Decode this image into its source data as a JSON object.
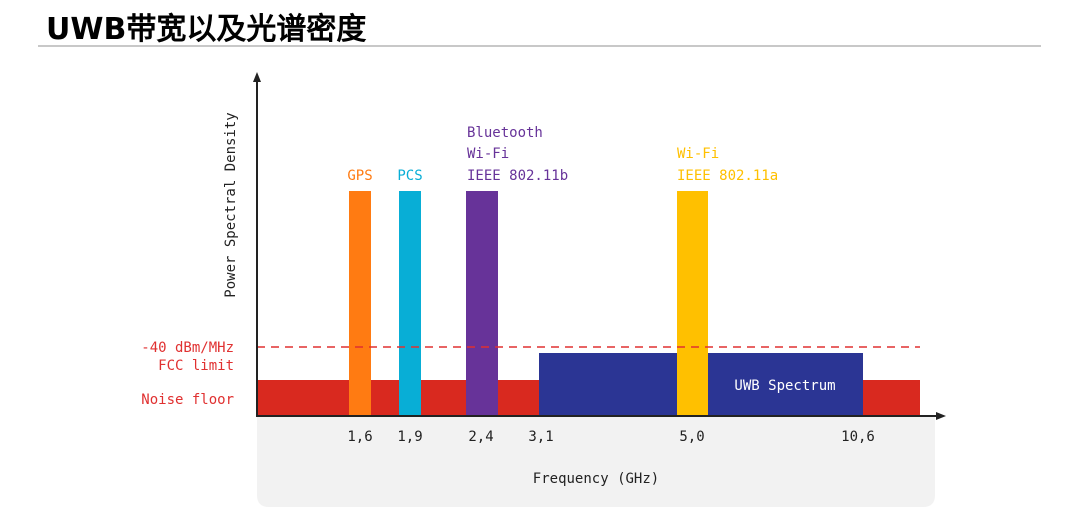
{
  "title": "UWB带宽以及光谱密度",
  "chart_data": {
    "type": "bar",
    "ylabel": "Power Spectral Density",
    "xlabel": "Frequency (GHz)",
    "x_ticks": [
      "1,6",
      "1,9",
      "2,4",
      "3,1",
      "5,0",
      "10,6"
    ],
    "limit_line": {
      "label_lines": [
        "-40 dBm/MHz",
        "FCC limit"
      ],
      "color": "#e03030",
      "style": "dashed"
    },
    "noise_floor": {
      "label": "Noise floor",
      "color": "#d9291f"
    },
    "bands": [
      {
        "name": "GPS",
        "label_lines": [
          "GPS"
        ],
        "center_ghz": 1.6,
        "color": "#ff7b12"
      },
      {
        "name": "PCS",
        "label_lines": [
          "PCS"
        ],
        "center_ghz": 1.9,
        "color": "#08aed6"
      },
      {
        "name": "Bluetooth Wi-Fi IEEE 802.11b",
        "label_lines": [
          "Bluetooth",
          "Wi-Fi",
          "IEEE 802.11b"
        ],
        "center_ghz": 2.4,
        "color": "#673399"
      },
      {
        "name": "Wi-Fi IEEE 802.11a",
        "label_lines": [
          "Wi-Fi",
          "IEEE 802.11a"
        ],
        "center_ghz": 5.0,
        "color": "#ffc000"
      }
    ],
    "uwb": {
      "label": "UWB Spectrum",
      "from_ghz": 3.1,
      "to_ghz": 10.6,
      "color": "#2b3594"
    }
  }
}
